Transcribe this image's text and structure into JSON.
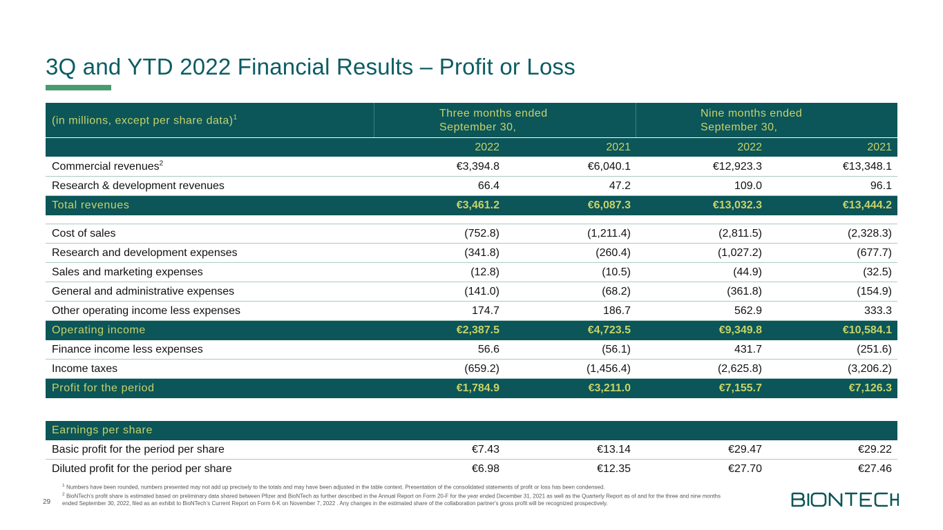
{
  "title": "3Q and YTD 2022 Financial Results – Profit or Loss",
  "header": {
    "description": "(in millions, except per share data)",
    "description_sup": "1",
    "period1_line1": "Three months ended",
    "period1_line2": "September 30,",
    "period2_line1": "Nine months ended",
    "period2_line2": "September 30,",
    "years": [
      "2022",
      "2021",
      "2022",
      "2021"
    ]
  },
  "rows": [
    {
      "label": "Commercial revenues",
      "sup": "2",
      "values": [
        "€3,394.8",
        "€6,040.1",
        "€12,923.3",
        "€13,348.1"
      ]
    },
    {
      "label": "Research & development revenues",
      "values": [
        "66.4",
        "47.2",
        "109.0",
        "96.1"
      ]
    },
    {
      "label": "Total revenues",
      "values": [
        "€3,461.2",
        "€6,087.3",
        "€13,032.3",
        "€13,444.2"
      ]
    },
    {
      "label": "Cost of sales",
      "values": [
        "(752.8)",
        "(1,211.4)",
        "(2,811.5)",
        "(2,328.3)"
      ]
    },
    {
      "label": "Research and development expenses",
      "values": [
        "(341.8)",
        "(260.4)",
        "(1,027.2)",
        "(677.7)"
      ]
    },
    {
      "label": "Sales and marketing expenses",
      "values": [
        "(12.8)",
        "(10.5)",
        "(44.9)",
        "(32.5)"
      ]
    },
    {
      "label": "General and administrative expenses",
      "values": [
        "(141.0)",
        "(68.2)",
        "(361.8)",
        "(154.9)"
      ]
    },
    {
      "label": "Other operating income less expenses",
      "values": [
        "174.7",
        "186.7",
        "562.9",
        "333.3"
      ]
    },
    {
      "label": "Operating income",
      "values": [
        "€2,387.5",
        "€4,723.5",
        "€9,349.8",
        "€10,584.1"
      ]
    },
    {
      "label": "Finance income less expenses",
      "values": [
        "56.6",
        "(56.1)",
        "431.7",
        "(251.6)"
      ]
    },
    {
      "label": "Income taxes",
      "values": [
        "(659.2)",
        "(1,456.4)",
        "(2,625.8)",
        "(3,206.2)"
      ]
    },
    {
      "label": "Profit for the period",
      "values": [
        "€1,784.9",
        "€3,211.0",
        "€7,155.7",
        "€7,126.3"
      ]
    }
  ],
  "eps": {
    "header": "Earnings per share",
    "rows": [
      {
        "label": "Basic profit for the period per share",
        "values": [
          "€7.43",
          "€13.14",
          "€29.47",
          "€29.22"
        ]
      },
      {
        "label": "Diluted profit for the period per share",
        "values": [
          "€6.98",
          "€12.35",
          "€27.70",
          "€27.46"
        ]
      }
    ]
  },
  "footnotes": {
    "n1_mark": "1",
    "n1": "Numbers have been rounded, numbers presented may not add up precisely to the totals and may have been adjusted in the table context. Presentation of the consolidated statements of profit or loss has been condensed.",
    "n2_mark": "2",
    "n2": "BioNTech’s profit share is estimated based on preliminary data shared between Pfizer and BioNTech as further described in the Annual Report on Form 20-F for the year ended December 31, 2021 as well as the Quarterly Report as of and for the three and nine months ended September 30, 2022, filed as an exhibit to BioNTech’s Current Report on Form 6-K on November 7, 2022 . Any changes in the estimated share of the collaboration partner's gross profit will be recognized prospectively."
  },
  "page_number": "29",
  "logo": {
    "text": "BIONTECH",
    "icon": "biontech-logo",
    "color": "#0c5558"
  },
  "colors": {
    "title": "#0b5c63",
    "accent_bar": "#4a9a6f",
    "header_bg": "#0c5558",
    "header_text": "#c7d36a",
    "row_border": "#a9c9c3"
  }
}
